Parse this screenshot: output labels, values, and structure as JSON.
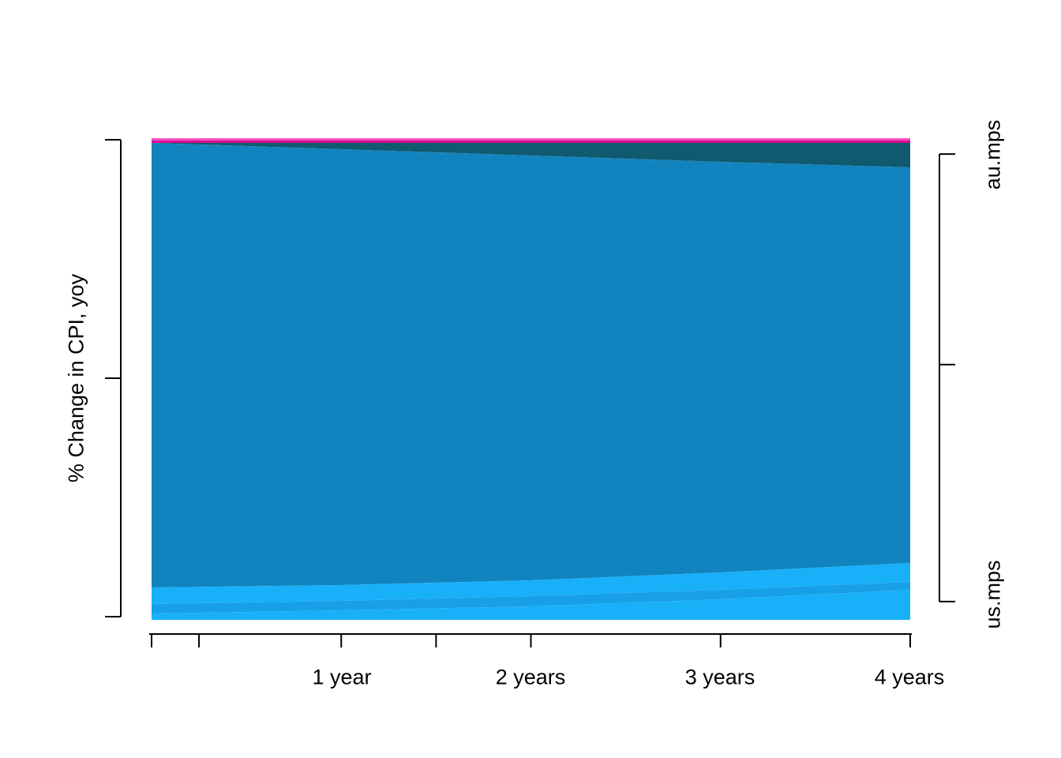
{
  "figure": {
    "background": "#FFFFFF",
    "axis_color": "#000000",
    "y_label": "% Change in CPI, yoy"
  },
  "chart_data": {
    "type": "area",
    "stacked": true,
    "title": "",
    "xlabel": "",
    "ylabel": "% Change in CPI, yoy",
    "x_unit": "years",
    "x": [
      0,
      1,
      2,
      3,
      4
    ],
    "x_range_years": [
      0,
      4
    ],
    "y_range_pct": [
      0,
      100
    ],
    "grid": false,
    "legend": "none",
    "x_axis": {
      "tick_positions_years": [
        0,
        0.25,
        1,
        1.5,
        2,
        3,
        4
      ],
      "labeled_ticks": [
        {
          "year": 1,
          "label": "1 year"
        },
        {
          "year": 2,
          "label": "2 years"
        },
        {
          "year": 3,
          "label": "3 years"
        },
        {
          "year": 4,
          "label": "4 years"
        }
      ]
    },
    "y_axis_left": {
      "tick_pcts": [
        0,
        50,
        100
      ],
      "labels_shown": false
    },
    "y_axis_right": {
      "tick_pcts": [
        3.3,
        47.0,
        96.2
      ],
      "top_label": "au.mps",
      "bottom_label": "us.mps"
    },
    "series": [
      {
        "id": "band-1",
        "label": "",
        "color": "#EF56C5",
        "share_pct": [
          0.49,
          0.49,
          0.49,
          0.49,
          0.49
        ]
      },
      {
        "id": "band-2",
        "label": "",
        "color": "#DB0A93",
        "share_pct": [
          0.49,
          0.49,
          0.49,
          0.49,
          0.49
        ]
      },
      {
        "id": "band-3",
        "label": "au.mps",
        "color": "#105A70",
        "share_pct": [
          0.0,
          1.32,
          2.63,
          3.94,
          5.09
        ]
      },
      {
        "id": "band-4",
        "label": "",
        "color": "#1184BF",
        "share_pct": [
          92.3,
          90.49,
          88.19,
          85.24,
          82.13
        ]
      },
      {
        "id": "band-5",
        "label": "",
        "color": "#19B0FA",
        "share_pct": [
          3.44,
          3.28,
          3.28,
          3.61,
          3.93
        ]
      },
      {
        "id": "band-6",
        "label": "",
        "color": "#17A0E8",
        "share_pct": [
          1.97,
          1.96,
          2.13,
          1.97,
          1.64
        ]
      },
      {
        "id": "band-7",
        "label": "us.mps",
        "color": "#19B0FA",
        "share_pct": [
          1.31,
          1.97,
          2.79,
          4.26,
          6.23
        ]
      }
    ]
  }
}
